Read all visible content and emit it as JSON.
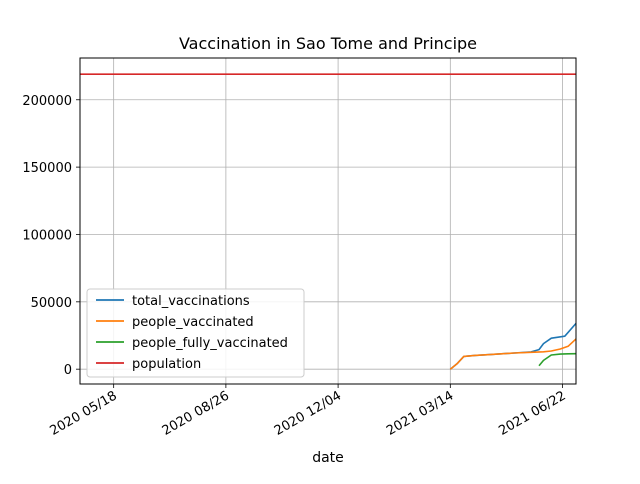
{
  "chart_data": {
    "type": "line",
    "title": "Vaccination in Sao Tome and Principe",
    "xlabel": "date",
    "ylabel": "",
    "x_type": "date",
    "xlim": [
      "2020-04-18",
      "2021-07-04"
    ],
    "ylim": [
      -11000,
      231000
    ],
    "grid": true,
    "legend_position": "lower-left",
    "xticks": [
      {
        "date": "2020-05-18",
        "label": "2020 05/18"
      },
      {
        "date": "2020-08-26",
        "label": "2020 08/26"
      },
      {
        "date": "2020-12-04",
        "label": "2020 12/04"
      },
      {
        "date": "2021-03-14",
        "label": "2021 03/14"
      },
      {
        "date": "2021-06-22",
        "label": "2021 06/22"
      }
    ],
    "yticks": [
      0,
      50000,
      100000,
      150000,
      200000
    ],
    "ytick_labels": [
      "0",
      "50000",
      "100000",
      "150000",
      "200000"
    ],
    "series": [
      {
        "name": "total_vaccinations",
        "color": "#1f77b4",
        "points": [
          {
            "x": "2021-03-14",
            "y": 0
          },
          {
            "x": "2021-03-20",
            "y": 4000
          },
          {
            "x": "2021-03-26",
            "y": 9500
          },
          {
            "x": "2021-04-05",
            "y": 10200
          },
          {
            "x": "2021-04-20",
            "y": 11000
          },
          {
            "x": "2021-05-10",
            "y": 12000
          },
          {
            "x": "2021-05-25",
            "y": 12800
          },
          {
            "x": "2021-06-01",
            "y": 14500
          },
          {
            "x": "2021-06-05",
            "y": 19000
          },
          {
            "x": "2021-06-12",
            "y": 23000
          },
          {
            "x": "2021-06-24",
            "y": 24500
          },
          {
            "x": "2021-07-04",
            "y": 34000
          }
        ]
      },
      {
        "name": "people_vaccinated",
        "color": "#ff7f0e",
        "points": [
          {
            "x": "2021-03-14",
            "y": 0
          },
          {
            "x": "2021-03-20",
            "y": 4000
          },
          {
            "x": "2021-03-26",
            "y": 9500
          },
          {
            "x": "2021-04-05",
            "y": 10200
          },
          {
            "x": "2021-04-20",
            "y": 11000
          },
          {
            "x": "2021-05-10",
            "y": 12000
          },
          {
            "x": "2021-05-25",
            "y": 12500
          },
          {
            "x": "2021-06-05",
            "y": 12900
          },
          {
            "x": "2021-06-12",
            "y": 13500
          },
          {
            "x": "2021-06-20",
            "y": 15000
          },
          {
            "x": "2021-06-27",
            "y": 17000
          },
          {
            "x": "2021-07-04",
            "y": 22500
          }
        ]
      },
      {
        "name": "people_fully_vaccinated",
        "color": "#2ca02c",
        "points": [
          {
            "x": "2021-06-01",
            "y": 2500
          },
          {
            "x": "2021-06-05",
            "y": 6500
          },
          {
            "x": "2021-06-12",
            "y": 10500
          },
          {
            "x": "2021-06-20",
            "y": 11200
          },
          {
            "x": "2021-06-27",
            "y": 11400
          },
          {
            "x": "2021-07-04",
            "y": 11500
          }
        ]
      },
      {
        "name": "population",
        "color": "#d62728",
        "points": [
          {
            "x": "2020-04-18",
            "y": 219000
          },
          {
            "x": "2021-07-04",
            "y": 219000
          }
        ]
      }
    ]
  }
}
